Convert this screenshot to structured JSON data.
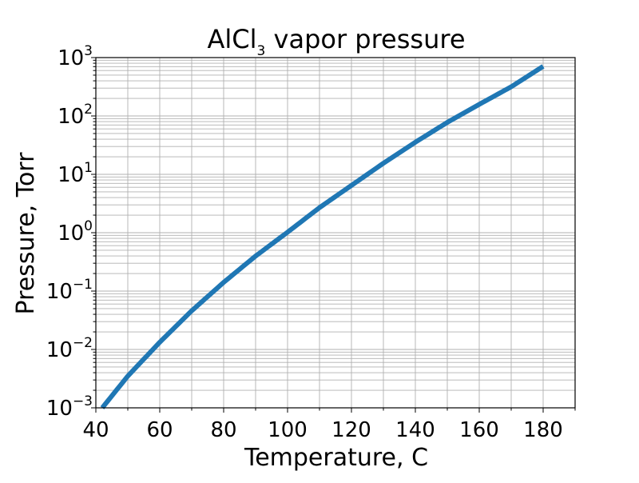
{
  "chart_data": {
    "type": "line",
    "title_main": "AlCl",
    "title_sub": "3",
    "title_rest": " vapor pressure",
    "xlabel": "Temperature, C",
    "ylabel": "Pressure, Torr",
    "xlim": [
      40,
      190
    ],
    "ylim": [
      0.001,
      1000
    ],
    "yscale": "log",
    "grid": true,
    "x_ticks": [
      "40",
      "60",
      "80",
      "100",
      "120",
      "140",
      "160",
      "180"
    ],
    "y_tick_base": "10",
    "y_tick_exponents": [
      "−3",
      "−2",
      "−1",
      "0",
      "1",
      "2",
      "3"
    ],
    "series": [
      {
        "color": "#1f77b4",
        "x": [
          42,
          50,
          60,
          70,
          80,
          90,
          100,
          110,
          120,
          130,
          140,
          150,
          160,
          170,
          180
        ],
        "y": [
          0.001,
          0.0035,
          0.0133,
          0.046,
          0.141,
          0.398,
          1.02,
          2.69,
          6.46,
          15.5,
          35.5,
          77.6,
          158,
          316,
          708
        ]
      }
    ]
  }
}
